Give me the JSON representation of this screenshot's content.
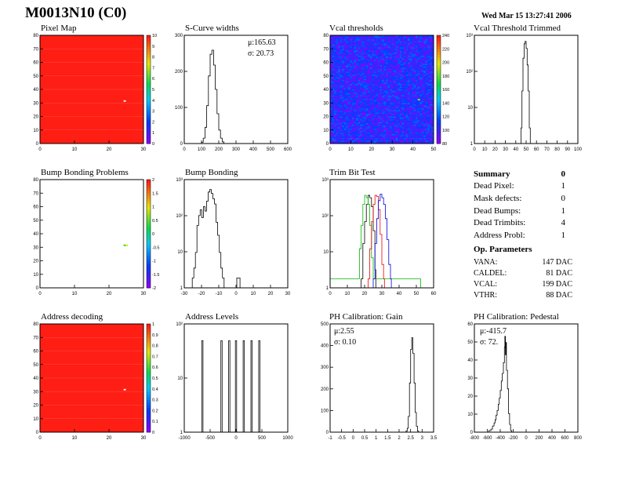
{
  "header": {
    "title": "M0013N10 (C0)",
    "date": "Wed Mar 15 13:27:41 2006"
  },
  "panels": {
    "pixel_map": {
      "title": "Pixel Map"
    },
    "scurve": {
      "title": "S-Curve widths",
      "stat_mu": "μ:165.63",
      "stat_sigma": "σ: 20.73"
    },
    "vcal_thr": {
      "title": "Vcal thresholds"
    },
    "vcal_trim": {
      "title": "Vcal Threshold Trimmed"
    },
    "bump_problems": {
      "title": "Bump Bonding Problems"
    },
    "bump_bonding": {
      "title": "Bump Bonding"
    },
    "trim_bit": {
      "title": "Trim Bit Test"
    },
    "address_decoding": {
      "title": "Address decoding"
    },
    "address_levels": {
      "title": "Address Levels"
    },
    "ph_gain": {
      "title": "PH Calibration: Gain",
      "stat_mu": "μ:2.55",
      "stat_sigma": "σ: 0.10"
    },
    "ph_ped": {
      "title": "PH Calibration: Pedestal",
      "stat_mu": "μ:-415.7",
      "stat_sigma": "σ: 72."
    }
  },
  "summary": {
    "title": "Summary",
    "total": "0",
    "rows": [
      {
        "label": "Dead Pixel:",
        "value": "1"
      },
      {
        "label": "Mask defects:",
        "value": "0"
      },
      {
        "label": "Dead Bumps:",
        "value": "1"
      },
      {
        "label": "Dead Trimbits:",
        "value": "4"
      },
      {
        "label": "Address Probl:",
        "value": "1"
      }
    ],
    "op_title": "Op. Parameters",
    "op_rows": [
      {
        "label": "VANA:",
        "value": "147 DAC"
      },
      {
        "label": "CALDEL:",
        "value": "81 DAC"
      },
      {
        "label": "VCAL:",
        "value": "199 DAC"
      },
      {
        "label": "VTHR:",
        "value": "88 DAC"
      }
    ]
  },
  "colors": {
    "map_red": "#ff2a1c",
    "histo_line": "#000000",
    "trim_green": "#00bb00",
    "trim_red": "#ee0000",
    "trim_blue": "#0000dd"
  },
  "chart_data": [
    {
      "id": "pixel_map",
      "type": "heatmap",
      "title": "Pixel Map",
      "xlim": [
        0,
        32
      ],
      "ylim": [
        0,
        80
      ],
      "xticks": [
        "0",
        "10",
        "20",
        "30"
      ],
      "yticks": [
        "0",
        "10",
        "20",
        "30",
        "40",
        "50",
        "60",
        "70",
        "80"
      ],
      "z_range": [
        0,
        10
      ],
      "zticks": [
        "0",
        "1",
        "2",
        "3",
        "4",
        "5",
        "6",
        "7",
        "8",
        "9",
        "10"
      ],
      "fill_value": 10,
      "special_cells": [
        {
          "x": 42,
          "y": 32,
          "value": 0
        }
      ]
    },
    {
      "id": "scurve",
      "type": "histogram",
      "title": "S-Curve widths",
      "xlim": [
        0,
        600
      ],
      "ylim": [
        0,
        400
      ],
      "xticks": [
        "0",
        "100",
        "200",
        "300",
        "400",
        "500",
        "600"
      ],
      "yticks": [
        "0",
        "100",
        "200",
        "300"
      ],
      "log_y": false,
      "points": [
        [
          90,
          0
        ],
        [
          100,
          5
        ],
        [
          110,
          20
        ],
        [
          120,
          60
        ],
        [
          130,
          140
        ],
        [
          140,
          250
        ],
        [
          150,
          330
        ],
        [
          160,
          345
        ],
        [
          170,
          290
        ],
        [
          180,
          200
        ],
        [
          190,
          110
        ],
        [
          200,
          50
        ],
        [
          210,
          20
        ],
        [
          220,
          6
        ],
        [
          230,
          0
        ]
      ]
    },
    {
      "id": "vcal_thr",
      "type": "heatmap",
      "title": "Vcal thresholds",
      "xlim": [
        0,
        52
      ],
      "ylim": [
        0,
        80
      ],
      "xticks": [
        "0",
        "10",
        "20",
        "30",
        "40",
        "50"
      ],
      "yticks": [
        "0",
        "10",
        "20",
        "30",
        "40",
        "50",
        "60",
        "70",
        "80"
      ],
      "z_range": [
        75,
        245
      ],
      "zticks": [
        "80",
        "100",
        "120",
        "140",
        "160",
        "180",
        "200",
        "220",
        "240"
      ],
      "typical_value": 100,
      "special_cells": [
        {
          "x": 44,
          "y": 33,
          "value": 150
        }
      ]
    },
    {
      "id": "vcal_trim",
      "type": "histogram",
      "title": "Vcal Threshold Trimmed",
      "xlim": [
        0,
        100
      ],
      "ylim": [
        1,
        2000
      ],
      "xticks": [
        "0",
        "10",
        "20",
        "30",
        "40",
        "50",
        "60",
        "70",
        "80",
        "90",
        "100"
      ],
      "yticks": [
        "1",
        "10",
        "10²",
        "10³"
      ],
      "log_y": true,
      "points": [
        [
          44,
          1
        ],
        [
          45,
          3
        ],
        [
          46,
          40
        ],
        [
          47,
          400
        ],
        [
          48,
          1100
        ],
        [
          49,
          1300
        ],
        [
          50,
          800
        ],
        [
          51,
          250
        ],
        [
          52,
          40
        ],
        [
          53,
          3
        ],
        [
          54,
          1
        ]
      ]
    },
    {
      "id": "bump_problems",
      "type": "heatmap",
      "title": "Bump Bonding Problems",
      "xlim": [
        0,
        32
      ],
      "ylim": [
        0,
        80
      ],
      "xticks": [
        "0",
        "10",
        "20",
        "30"
      ],
      "yticks": [
        "0",
        "10",
        "20",
        "30",
        "40",
        "50",
        "60",
        "70",
        "80"
      ],
      "z_range": [
        -2,
        2
      ],
      "zticks": [
        "-2",
        "-1.5",
        "-1",
        "-0.5",
        "0",
        "0.5",
        "1",
        "1.5",
        "2"
      ],
      "fill_value": null,
      "special_cells": [
        {
          "x": 42,
          "y": 32,
          "value": 0.3
        },
        {
          "x": 43,
          "y": 32,
          "value": 1.0
        }
      ]
    },
    {
      "id": "bump_bonding",
      "type": "histogram",
      "title": "Bump Bonding",
      "xlim": [
        -35,
        30
      ],
      "ylim": [
        0.5,
        1000
      ],
      "xticks": [
        "-30",
        "-20",
        "-10",
        "0",
        "10",
        "20",
        "30"
      ],
      "yticks": [
        "1",
        "10",
        "10²",
        "10³"
      ],
      "log_y": true,
      "points": [
        [
          -30,
          1
        ],
        [
          -29,
          2
        ],
        [
          -28,
          6
        ],
        [
          -27,
          40
        ],
        [
          -26,
          80
        ],
        [
          -25,
          120
        ],
        [
          -24,
          70
        ],
        [
          -23,
          150
        ],
        [
          -22,
          110
        ],
        [
          -21,
          220
        ],
        [
          -20,
          420
        ],
        [
          -19,
          500
        ],
        [
          -18,
          380
        ],
        [
          -17,
          260
        ],
        [
          -16,
          180
        ],
        [
          -15,
          50
        ],
        [
          -14,
          20
        ],
        [
          -13,
          6
        ],
        [
          -12,
          2
        ],
        [
          -11,
          1
        ],
        [
          -10,
          0.5
        ],
        [
          -2,
          1
        ],
        [
          -1,
          1
        ],
        [
          0,
          0.5
        ]
      ]
    },
    {
      "id": "trim_bit",
      "type": "histogram",
      "title": "Trim Bit Test",
      "xlim": [
        0,
        60
      ],
      "ylim": [
        0.5,
        2000
      ],
      "xticks": [
        "0",
        "10",
        "20",
        "30",
        "40",
        "50",
        "60"
      ],
      "yticks": [
        "1",
        "10",
        "10²",
        "10³"
      ],
      "log_y": true,
      "series": [
        {
          "color": "#000000",
          "points": [
            [
              18,
              1
            ],
            [
              19,
              15
            ],
            [
              20,
              80
            ],
            [
              21,
              300
            ],
            [
              22,
              600
            ],
            [
              23,
              500
            ],
            [
              24,
              250
            ],
            [
              25,
              40
            ],
            [
              26,
              2
            ]
          ]
        },
        {
          "color": "#00bb00",
          "points": [
            [
              0,
              1
            ],
            [
              1,
              1
            ],
            [
              2,
              1
            ],
            [
              14,
              1
            ],
            [
              16,
              1
            ],
            [
              17,
              10
            ],
            [
              18,
              60
            ],
            [
              19,
              300
            ],
            [
              20,
              600
            ],
            [
              21,
              500
            ],
            [
              22,
              300
            ],
            [
              23,
              60
            ],
            [
              24,
              5
            ],
            [
              25,
              1
            ],
            [
              44,
              1
            ],
            [
              46,
              1
            ],
            [
              52,
              1
            ]
          ]
        },
        {
          "color": "#ee0000",
          "points": [
            [
              22,
              1
            ],
            [
              23,
              10
            ],
            [
              24,
              80
            ],
            [
              25,
              300
            ],
            [
              26,
              600
            ],
            [
              27,
              550
            ],
            [
              28,
              200
            ],
            [
              29,
              30
            ],
            [
              30,
              3
            ],
            [
              31,
              1
            ]
          ]
        },
        {
          "color": "#0000dd",
          "points": [
            [
              25,
              1
            ],
            [
              26,
              15
            ],
            [
              27,
              100
            ],
            [
              28,
              400
            ],
            [
              29,
              650
            ],
            [
              30,
              500
            ],
            [
              31,
              300
            ],
            [
              32,
              100
            ],
            [
              33,
              20
            ],
            [
              34,
              3
            ],
            [
              35,
              1
            ]
          ]
        }
      ]
    },
    {
      "id": "address_decoding",
      "type": "heatmap",
      "title": "Address decoding",
      "xlim": [
        0,
        32
      ],
      "ylim": [
        0,
        80
      ],
      "xticks": [
        "0",
        "10",
        "20",
        "30"
      ],
      "yticks": [
        "0",
        "10",
        "20",
        "30",
        "40",
        "50",
        "60",
        "70",
        "80"
      ],
      "z_range": [
        0,
        1
      ],
      "zticks": [
        "0",
        "0.1",
        "0.2",
        "0.3",
        "0.4",
        "0.5",
        "0.6",
        "0.7",
        "0.8",
        "0.9",
        "1"
      ],
      "fill_value": 1,
      "special_cells": [
        {
          "x": 42,
          "y": 32,
          "value": 0
        }
      ]
    },
    {
      "id": "address_levels",
      "type": "histogram",
      "title": "Address Levels",
      "xlim": [
        -1000,
        1000
      ],
      "ylim": [
        0.5,
        600
      ],
      "xticks": [
        "-1000",
        "-500",
        "0",
        "500",
        "1000"
      ],
      "yticks": [
        "1",
        "10",
        "10²"
      ],
      "log_y": true,
      "peaks": [
        -650,
        -280,
        -130,
        0,
        150,
        300,
        450
      ],
      "peak_height": 200
    },
    {
      "id": "ph_gain",
      "type": "histogram",
      "title": "PH Calibration: Gain",
      "xlim": [
        -1,
        3.5
      ],
      "ylim": [
        0,
        550
      ],
      "xticks": [
        "-1",
        "-0.5",
        "0",
        "0.5",
        "1",
        "1.5",
        "2",
        "2.5",
        "3",
        "3.5"
      ],
      "yticks": [
        "0",
        "100",
        "200",
        "300",
        "400",
        "500"
      ],
      "log_y": false,
      "points": [
        [
          2.2,
          0
        ],
        [
          2.3,
          5
        ],
        [
          2.35,
          20
        ],
        [
          2.4,
          80
        ],
        [
          2.45,
          250
        ],
        [
          2.5,
          420
        ],
        [
          2.55,
          480
        ],
        [
          2.6,
          400
        ],
        [
          2.65,
          250
        ],
        [
          2.7,
          100
        ],
        [
          2.75,
          30
        ],
        [
          2.8,
          5
        ],
        [
          2.85,
          0
        ]
      ]
    },
    {
      "id": "ph_ped",
      "type": "histogram",
      "title": "PH Calibration: Pedestal",
      "xlim": [
        -1000,
        1000
      ],
      "ylim": [
        0,
        70
      ],
      "xticks": [
        "-800",
        "-600",
        "-400",
        "-200",
        "0",
        "200",
        "400",
        "600",
        "800"
      ],
      "yticks": [
        "0",
        "10",
        "20",
        "30",
        "40",
        "50",
        "60"
      ],
      "log_y": false,
      "points": [
        [
          -780,
          0
        ],
        [
          -720,
          1
        ],
        [
          -680,
          2
        ],
        [
          -650,
          4
        ],
        [
          -620,
          6
        ],
        [
          -600,
          8
        ],
        [
          -580,
          11
        ],
        [
          -560,
          14
        ],
        [
          -540,
          18
        ],
        [
          -520,
          22
        ],
        [
          -500,
          27
        ],
        [
          -480,
          33
        ],
        [
          -460,
          38
        ],
        [
          -440,
          45
        ],
        [
          -420,
          55
        ],
        [
          -410,
          62
        ],
        [
          -400,
          50
        ],
        [
          -390,
          58
        ],
        [
          -380,
          40
        ],
        [
          -360,
          28
        ],
        [
          -340,
          12
        ],
        [
          -320,
          5
        ],
        [
          -300,
          1
        ],
        [
          -280,
          0
        ]
      ]
    }
  ]
}
